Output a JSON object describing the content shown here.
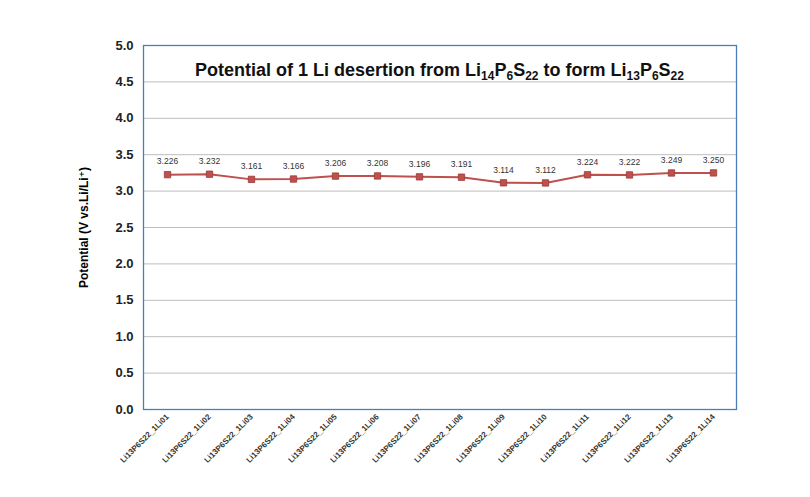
{
  "chart_data": {
    "type": "line",
    "title": "Potential of 1 Li desertion from Li14P6S22 to form Li13P6S22",
    "y_label": "Potential (V vs.Li/Li⁺)",
    "categories": [
      "Li13P6S22_1Li01",
      "Li13P6S22_1Li02",
      "Li13P6S22_1Li03",
      "Li13P6S22_1Li04",
      "Li13P6S22_1Li05",
      "Li13P6S22_1Li06",
      "Li13P6S22_1Li07",
      "Li13P6S22_1Li08",
      "Li13P6S22_1Li09",
      "Li13P6S22_1Li10",
      "Li13P6S22_1Li11",
      "Li13P6S22_1Li12",
      "Li13P6S22_1Li13",
      "Li13P6S22_1Li14"
    ],
    "values": [
      3.226,
      3.232,
      3.161,
      3.166,
      3.206,
      3.208,
      3.196,
      3.191,
      3.114,
      3.112,
      3.224,
      3.222,
      3.249,
      3.25
    ],
    "value_labels": [
      "3.226",
      "3.232",
      "3.161",
      "3.166",
      "3.206",
      "3.208",
      "3.196",
      "3.191",
      "3.114",
      "3.112",
      "3.224",
      "3.222",
      "3.249",
      "3.250"
    ],
    "color": "#c0504d",
    "marker": "square",
    "line_style": "solid",
    "data_labels": true,
    "grid": true,
    "ylim": [
      0,
      5
    ],
    "yticks": [
      {
        "value": 0,
        "label": "0.0"
      },
      0.5,
      {
        "value": 1,
        "label": "1.0"
      },
      1.5,
      {
        "value": 2,
        "label": "2.0"
      },
      2.5,
      {
        "value": 3,
        "label": "3.0"
      },
      3.5,
      {
        "value": 4,
        "label": "4.0"
      },
      4.5,
      {
        "value": 5,
        "label": "5.0"
      }
    ]
  }
}
